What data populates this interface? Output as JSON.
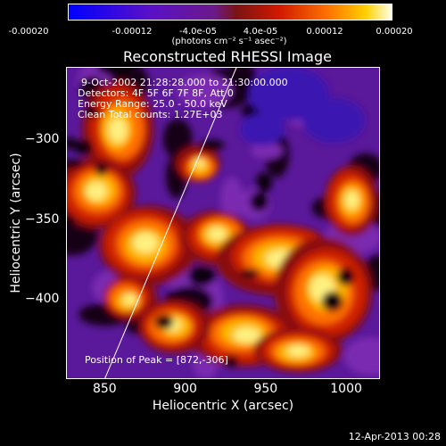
{
  "colorbar": {
    "ticks": [
      "-0.00020",
      "-0.00012",
      "-4.0e-05",
      "4.0e-05",
      "0.00012",
      "0.00020"
    ],
    "unit": "(photons cm⁻² s⁻¹ asec⁻²)",
    "colors": [
      "#0000ff",
      "#3a00d0",
      "#6a1aa8",
      "#8a1e1e",
      "#c01a00",
      "#ff6000",
      "#ffd000",
      "#ffffe0"
    ]
  },
  "chart_data": {
    "type": "heatmap",
    "title": "Reconstructed RHESSI Image",
    "xlabel": "Heliocentric X (arcsec)",
    "ylabel": "Heliocentric Y (arcsec)",
    "xlim": [
      826,
      1021
    ],
    "ylim": [
      -450,
      -255
    ],
    "x_ticks": [
      "850",
      "900",
      "950",
      "1000"
    ],
    "y_ticks": [
      "−300",
      "−350",
      "−400"
    ],
    "info_lines": [
      "9-Oct-2002 21:28:28.000 to 21:30:00.000",
      "Detectors: 4F 5F 6F 7F 8F, Att 0",
      "Energy Range: 25.0 - 50.0 keV",
      "Clean    Total counts: 1.27E+03"
    ],
    "peak_label": "Position of Peak = [872,-306]",
    "peak": [
      872,
      -306
    ],
    "limb_line": [
      [
        850,
        -450
      ],
      [
        932,
        -255
      ]
    ]
  },
  "footer": "12-Apr-2013 00:28"
}
